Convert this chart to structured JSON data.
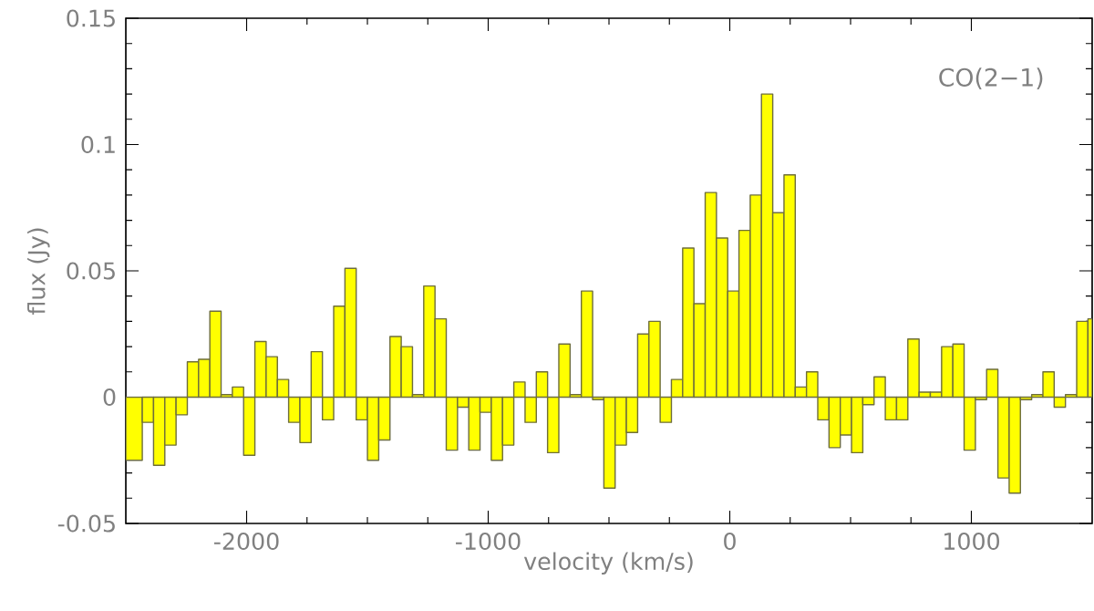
{
  "chart_data": {
    "type": "histogram",
    "xlabel": "velocity (km/s)",
    "ylabel": "flux (Jy)",
    "annotations": [
      "CO(2−1)"
    ],
    "color": "#ffff00",
    "bins": [
      -2500,
      -2431.8,
      -2385.2,
      -2338.6,
      -2292.0,
      -2245.4,
      -2198.8,
      -2152.2,
      -2105.6,
      -2059.0,
      -2012.4,
      -1965.8,
      -1919.2,
      -1872.6,
      -1826.0,
      -1779.4,
      -1732.8,
      -1686.2,
      -1639.6,
      -1593.0,
      -1546.4,
      -1499.8,
      -1453.2,
      -1406.6,
      -1360.0,
      -1313.4,
      -1266.8,
      -1220.2,
      -1173.6,
      -1127.0,
      -1080.4,
      -1033.8,
      -987.2,
      -940.6,
      -894.0,
      -847.4,
      -800.8,
      -754.2,
      -707.6,
      -661.0,
      -614.4,
      -567.8,
      -521.2,
      -474.6,
      -428.0,
      -381.4,
      -334.8,
      -288.2,
      -241.6,
      -195.0,
      -148.4,
      -101.8,
      -55.2,
      -8.6,
      38.0,
      84.6,
      131.2,
      177.8,
      224.4,
      271.0,
      317.6,
      364.2,
      410.8,
      457.4,
      504.0,
      550.6,
      597.2,
      643.8,
      690.4,
      737.0,
      783.6,
      830.2,
      876.8,
      923.4,
      970.0,
      1016.6,
      1063.2,
      1109.8,
      1156.4,
      1203.0,
      1249.6,
      1296.2,
      1342.8,
      1389.4,
      1436.0,
      1482.6,
      1500
    ],
    "values": [
      -0.025,
      -0.01,
      -0.027,
      -0.019,
      -0.007,
      0.014,
      0.015,
      0.034,
      0.001,
      0.004,
      -0.023,
      0.022,
      0.016,
      0.007,
      -0.01,
      -0.018,
      0.018,
      -0.009,
      0.036,
      0.051,
      -0.009,
      -0.025,
      -0.017,
      0.024,
      0.02,
      0.001,
      0.044,
      0.031,
      -0.021,
      -0.004,
      -0.021,
      -0.006,
      -0.025,
      -0.019,
      0.006,
      -0.01,
      0.01,
      -0.022,
      0.021,
      0.001,
      0.042,
      -0.001,
      -0.036,
      -0.019,
      -0.014,
      0.025,
      0.03,
      -0.01,
      0.007,
      0.059,
      0.037,
      0.081,
      0.063,
      0.042,
      0.066,
      0.08,
      0.12,
      0.073,
      0.088,
      0.004,
      0.01,
      -0.009,
      -0.02,
      -0.015,
      -0.022,
      -0.003,
      0.008,
      -0.009,
      -0.009,
      0.023,
      0.002,
      0.002,
      0.02,
      0.021,
      -0.021,
      -0.001,
      0.011,
      -0.032,
      -0.038,
      -0.001,
      0.001,
      0.01,
      -0.004,
      0.001,
      0.03,
      0.031
    ],
    "xlim": [
      -2500,
      1500
    ],
    "ylim": [
      -0.05,
      0.15
    ],
    "xticks": [
      -2000,
      -1000,
      0,
      1000
    ],
    "yticks": [
      -0.05,
      0,
      0.05,
      0.1,
      0.15
    ],
    "grid": false
  }
}
